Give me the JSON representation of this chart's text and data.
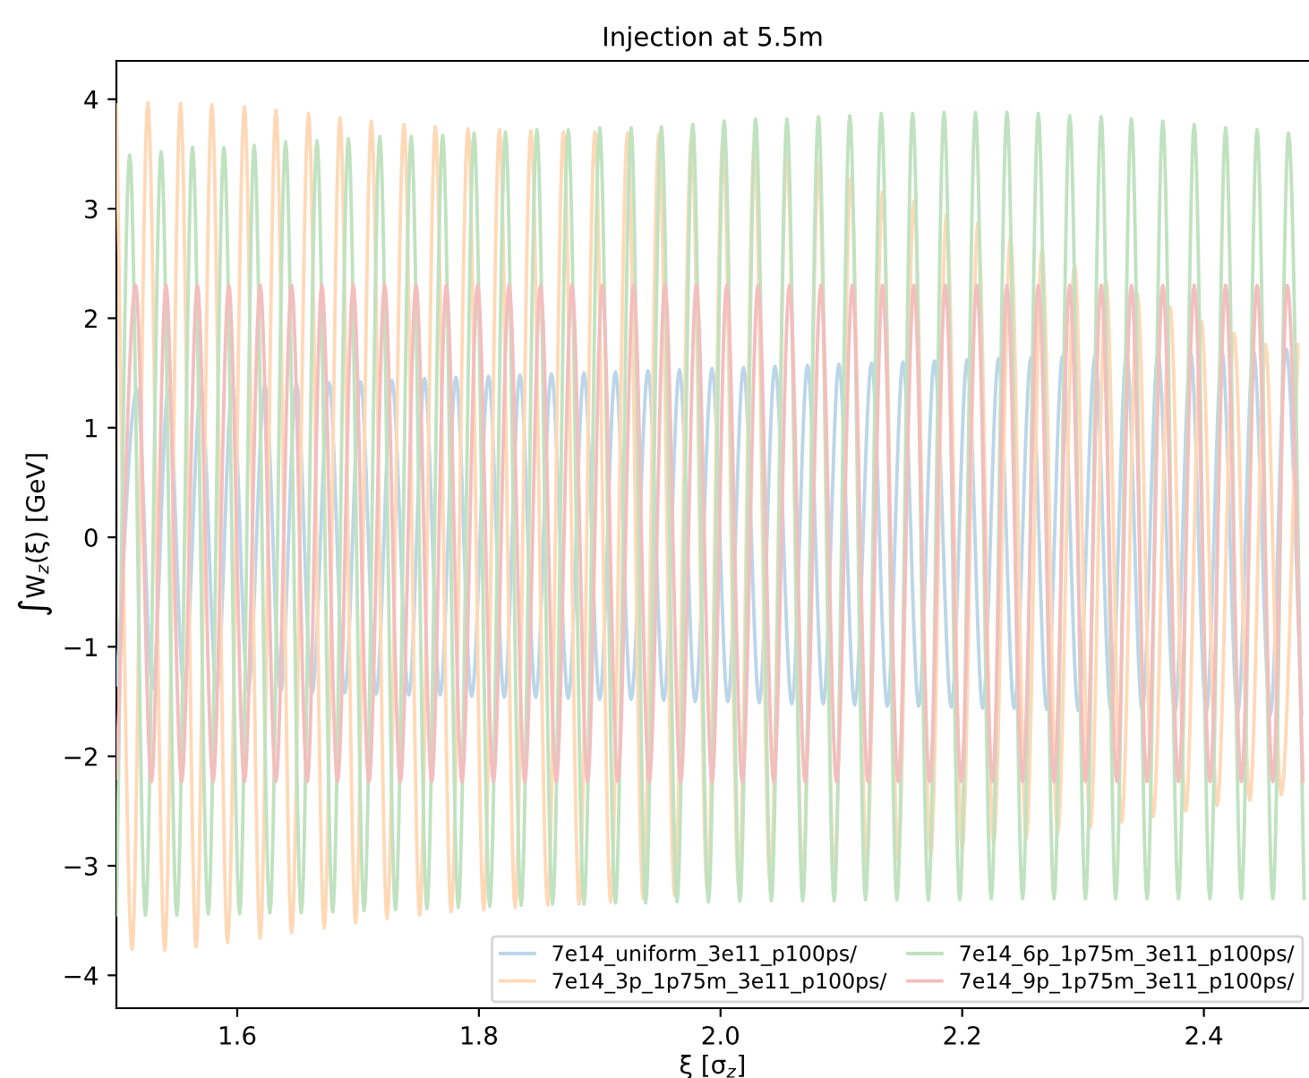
{
  "chart_data": {
    "type": "line",
    "title": "Injection at 5.5m",
    "xlabel": "ξ [σ$_{z}$]",
    "ylabel": "∫W$_{z}$(ξ) [GeV]",
    "xlim": [
      1.5,
      2.487
    ],
    "xticks": [
      1.6,
      1.8,
      {
        "value": 2.0,
        "label": "2.0"
      },
      2.2,
      2.4
    ],
    "ylim": [
      -4.3,
      4.35
    ],
    "yticks": [
      {
        "value": -4,
        "label": "−4"
      },
      {
        "value": -3,
        "label": "−3"
      },
      {
        "value": -2,
        "label": "−2"
      },
      {
        "value": -1,
        "label": "−1"
      },
      0,
      1,
      2,
      3,
      4
    ],
    "grid": false,
    "legend": "bottom right",
    "line_style": "solid",
    "marker": "none",
    "series": [
      {
        "name": "7e14_uniform_3e11_p100ps/",
        "color": "#bbd6e8",
        "x": [
          1.5,
          1.517,
          1.53,
          1.543,
          1.556,
          1.57,
          1.583,
          1.596,
          1.609,
          1.623,
          1.636,
          1.649,
          1.662,
          1.676,
          1.689,
          1.702,
          1.715,
          1.728,
          1.742,
          1.755,
          1.768,
          1.781,
          1.794,
          1.808,
          1.821,
          1.834,
          1.847,
          1.86,
          1.874,
          1.887,
          1.9,
          1.913,
          1.926,
          1.94,
          1.953,
          1.966,
          1.979,
          1.993,
          2.006,
          2.019,
          2.032,
          2.045,
          2.059,
          2.072,
          2.085,
          2.098,
          2.111,
          2.125,
          2.138,
          2.151,
          2.164,
          2.177,
          2.191,
          2.204,
          2.217,
          2.23,
          2.243,
          2.257,
          2.27,
          2.283,
          2.296,
          2.31,
          2.323,
          2.336,
          2.349,
          2.362,
          2.376,
          2.389,
          2.402,
          2.415,
          2.428,
          2.441,
          2.455,
          2.468,
          2.481
        ],
        "values": [
          -1.35,
          1.35,
          -1.38,
          1.36,
          -1.39,
          1.37,
          -1.4,
          1.38,
          -1.4,
          1.39,
          -1.41,
          1.4,
          -1.42,
          1.41,
          -1.42,
          1.42,
          -1.43,
          1.43,
          -1.44,
          1.45,
          -1.44,
          1.46,
          -1.45,
          1.47,
          -1.46,
          1.48,
          -1.46,
          1.49,
          -1.47,
          1.5,
          -1.48,
          1.51,
          -1.48,
          1.52,
          -1.49,
          1.53,
          -1.5,
          1.54,
          -1.5,
          1.55,
          -1.51,
          1.56,
          -1.52,
          1.57,
          -1.52,
          1.58,
          -1.53,
          1.59,
          -1.54,
          1.6,
          -1.54,
          1.61,
          -1.55,
          1.62,
          -1.56,
          1.63,
          -1.56,
          1.64,
          -1.57,
          1.65,
          -1.58,
          1.66,
          -1.58,
          1.67,
          -1.59,
          1.68,
          -1.6,
          1.69,
          -1.6,
          1.7,
          -1.61,
          1.71,
          -1.62,
          1.72,
          -1.62
        ]
      },
      {
        "name": "7e14_3p_1p75m_3e11_p100ps/",
        "color": "#ffd9b7",
        "x": [
          1.5,
          1.513,
          1.526,
          1.54,
          1.553,
          1.566,
          1.579,
          1.592,
          1.606,
          1.619,
          1.632,
          1.645,
          1.659,
          1.672,
          1.685,
          1.698,
          1.711,
          1.724,
          1.738,
          1.751,
          1.764,
          1.777,
          1.791,
          1.804,
          1.817,
          1.83,
          1.843,
          1.857,
          1.87,
          1.883,
          1.896,
          1.909,
          1.923,
          1.936,
          1.949,
          1.962,
          1.976,
          1.989,
          2.002,
          2.015,
          2.028,
          2.041,
          2.055,
          2.068,
          2.081,
          2.094,
          2.108,
          2.121,
          2.134,
          2.147,
          2.16,
          2.174,
          2.187,
          2.2,
          2.213,
          2.226,
          2.24,
          2.253,
          2.266,
          2.279,
          2.293,
          2.306,
          2.319,
          2.332,
          2.345,
          2.358,
          2.372,
          2.385,
          2.398,
          2.411,
          2.425,
          2.438,
          2.451,
          2.464,
          2.478
        ],
        "values": [
          3.95,
          -3.76,
          3.97,
          -3.77,
          3.96,
          -3.74,
          3.95,
          -3.7,
          3.93,
          -3.66,
          3.9,
          -3.61,
          3.87,
          -3.57,
          3.83,
          -3.52,
          3.8,
          -3.48,
          3.77,
          -3.45,
          3.75,
          -3.42,
          3.73,
          -3.4,
          3.72,
          -3.38,
          3.71,
          -3.36,
          3.7,
          -3.35,
          3.7,
          -3.33,
          3.69,
          -3.3,
          3.68,
          -3.27,
          3.66,
          -3.23,
          3.64,
          -3.19,
          3.57,
          -3.15,
          3.49,
          -3.1,
          3.41,
          -3.05,
          3.28,
          -3.0,
          3.15,
          -2.95,
          3.07,
          -2.9,
          2.95,
          -2.85,
          2.87,
          -2.8,
          2.74,
          -2.75,
          2.62,
          -2.7,
          2.49,
          -2.65,
          2.35,
          -2.6,
          2.22,
          -2.55,
          2.1,
          -2.5,
          1.97,
          -2.45,
          1.86,
          -2.4,
          1.76,
          -2.35,
          1.76
        ]
      },
      {
        "name": "7e14_6p_1p75m_3e11_p100ps/",
        "color": "#c0e2c0",
        "x": [
          1.5,
          1.511,
          1.524,
          1.537,
          1.55,
          1.563,
          1.576,
          1.589,
          1.602,
          1.614,
          1.627,
          1.64,
          1.653,
          1.666,
          1.679,
          1.692,
          1.705,
          1.718,
          1.731,
          1.744,
          1.757,
          1.77,
          1.783,
          1.796,
          1.809,
          1.822,
          1.835,
          1.848,
          1.861,
          1.874,
          1.887,
          1.9,
          1.913,
          1.926,
          1.938,
          1.951,
          1.964,
          1.977,
          1.99,
          2.003,
          2.016,
          2.029,
          2.042,
          2.055,
          2.068,
          2.081,
          2.094,
          2.107,
          2.12,
          2.133,
          2.146,
          2.159,
          2.172,
          2.185,
          2.198,
          2.211,
          2.224,
          2.237,
          2.25,
          2.263,
          2.276,
          2.289,
          2.302,
          2.315,
          2.327,
          2.34,
          2.353,
          2.366,
          2.379,
          2.392,
          2.405,
          2.418,
          2.431,
          2.444,
          2.457,
          2.47,
          2.483
        ],
        "values": [
          -3.45,
          3.49,
          -3.45,
          3.52,
          -3.45,
          3.56,
          -3.44,
          3.56,
          -3.44,
          3.58,
          -3.43,
          3.61,
          -3.43,
          3.62,
          -3.42,
          3.64,
          -3.41,
          3.66,
          -3.4,
          3.66,
          -3.39,
          3.67,
          -3.38,
          3.69,
          -3.37,
          3.7,
          -3.36,
          3.72,
          -3.35,
          3.72,
          -3.35,
          3.74,
          -3.34,
          3.74,
          -3.34,
          3.75,
          -3.33,
          3.77,
          -3.33,
          3.8,
          -3.32,
          3.82,
          -3.32,
          3.82,
          -3.32,
          3.84,
          -3.32,
          3.85,
          -3.31,
          3.87,
          -3.31,
          3.87,
          -3.31,
          3.88,
          -3.31,
          3.88,
          -3.3,
          3.88,
          -3.3,
          3.87,
          -3.3,
          3.85,
          -3.3,
          3.84,
          -3.3,
          3.82,
          -3.3,
          3.8,
          -3.3,
          3.77,
          -3.3,
          3.74,
          -3.3,
          3.72,
          -3.3,
          3.69,
          -3.3
        ]
      },
      {
        "name": "7e14_9p_1p75m_3e11_p100ps/",
        "color": "#f3bebe",
        "x": [
          1.5,
          1.516,
          1.529,
          1.541,
          1.554,
          1.567,
          1.58,
          1.593,
          1.606,
          1.619,
          1.632,
          1.645,
          1.658,
          1.67,
          1.683,
          1.696,
          1.709,
          1.722,
          1.735,
          1.748,
          1.761,
          1.773,
          1.786,
          1.799,
          1.812,
          1.825,
          1.838,
          1.851,
          1.864,
          1.877,
          1.89,
          1.902,
          1.915,
          1.928,
          1.941,
          1.954,
          1.967,
          1.98,
          1.993,
          2.005,
          2.018,
          2.031,
          2.044,
          2.057,
          2.07,
          2.083,
          2.096,
          2.109,
          2.122,
          2.134,
          2.147,
          2.16,
          2.173,
          2.186,
          2.199,
          2.212,
          2.225,
          2.237,
          2.25,
          2.263,
          2.276,
          2.289,
          2.302,
          2.315,
          2.328,
          2.34,
          2.353,
          2.366,
          2.379,
          2.392,
          2.405,
          2.418,
          2.431,
          2.444,
          2.457,
          2.469,
          2.482
        ],
        "values": [
          -2.2,
          2.3,
          -2.23,
          2.3,
          -2.23,
          2.3,
          -2.23,
          2.3,
          -2.23,
          2.3,
          -2.23,
          2.3,
          -2.23,
          2.3,
          -2.23,
          2.3,
          -2.23,
          2.3,
          -2.23,
          2.3,
          -2.23,
          2.3,
          -2.23,
          2.3,
          -2.23,
          2.3,
          -2.23,
          2.3,
          -2.23,
          2.3,
          -2.23,
          2.3,
          -2.23,
          2.3,
          -2.23,
          2.3,
          -2.23,
          2.3,
          -2.23,
          2.3,
          -2.23,
          2.3,
          -2.23,
          2.3,
          -2.23,
          2.3,
          -2.23,
          2.3,
          -2.23,
          2.3,
          -2.23,
          2.3,
          -2.23,
          2.3,
          -2.23,
          2.3,
          -2.23,
          2.3,
          -2.23,
          2.3,
          -2.23,
          2.3,
          -2.23,
          2.3,
          -2.23,
          2.3,
          -2.23,
          2.3,
          -2.23,
          2.3,
          -2.23,
          2.3,
          -2.23,
          2.3,
          -2.23,
          2.3,
          -2.23
        ]
      }
    ]
  }
}
